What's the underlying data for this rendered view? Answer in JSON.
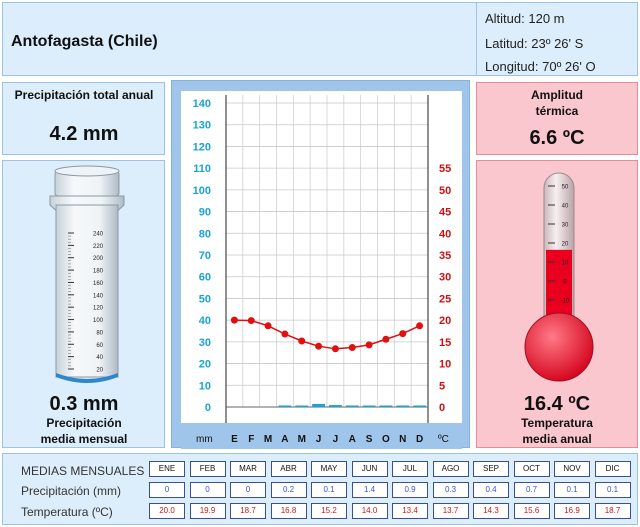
{
  "header": {
    "city": "Antofagasta (Chile)",
    "altitude": "Altitud: 120 m",
    "latitude": "Latitud: 23º 26' S",
    "longitude": "Longitud:  70º 26' O"
  },
  "precip_total": {
    "label": "Precipitación total anual",
    "value": "4.2 mm"
  },
  "precip_mean": {
    "value": "0.3 mm",
    "label_line1": "Precipitación",
    "label_line2": "media mensual"
  },
  "thermal_range": {
    "label_line1": "Amplitud",
    "label_line2": "térmica",
    "value": "6.6 ºC"
  },
  "temp_mean": {
    "value": "16.4 ºC",
    "label_line1": "Temperatura",
    "label_line2": "media anual"
  },
  "gauge": {
    "ticks": [
      "240",
      "220",
      "200",
      "180",
      "160",
      "140",
      "120",
      "100",
      "80",
      "60",
      "40",
      "20"
    ],
    "level_mm": 0.3
  },
  "thermometer": {
    "ticks": [
      "50",
      "40",
      "30",
      "20",
      "10",
      "0",
      "-10"
    ],
    "level_c": 16.4
  },
  "chart_data": {
    "type": "line",
    "categories": [
      "E",
      "F",
      "M",
      "A",
      "M",
      "J",
      "J",
      "A",
      "S",
      "O",
      "N",
      "D"
    ],
    "precipitation_mm": [
      0,
      0,
      0,
      0.2,
      0.1,
      1.4,
      0.9,
      0.3,
      0.4,
      0.7,
      0.1,
      0.1
    ],
    "temperature_c": [
      20.0,
      19.9,
      18.7,
      16.8,
      15.2,
      14.0,
      13.4,
      13.7,
      14.3,
      15.6,
      16.9,
      18.7
    ],
    "xlabel_left": "mm",
    "xlabel_right": "ºC",
    "ylim_left": [
      0,
      140
    ],
    "ylim_right": [
      0,
      55
    ],
    "yticks_left": [
      "0",
      "10",
      "20",
      "30",
      "40",
      "50",
      "60",
      "70",
      "80",
      "90",
      "100",
      "110",
      "120",
      "130",
      "140"
    ],
    "yticks_right": [
      "0",
      "5",
      "10",
      "15",
      "20",
      "25",
      "30",
      "35",
      "40",
      "45",
      "50",
      "55"
    ],
    "precip_color": "#1aa3d6",
    "temp_color": "#e01010",
    "grid": true
  },
  "table": {
    "title": "MEDIAS MENSUALES",
    "precip_label": "Precipitación (mm)",
    "temp_label": "Temperatura (ºC)",
    "months": [
      "ENE",
      "FEB",
      "MAR",
      "ABR",
      "MAY",
      "JUN",
      "JUL",
      "AGO",
      "SEP",
      "OCT",
      "NOV",
      "DIC"
    ],
    "precip": [
      "0",
      "0",
      "0",
      "0.2",
      "0.1",
      "1.4",
      "0.9",
      "0.3",
      "0.4",
      "0.7",
      "0.1",
      "0.1"
    ],
    "temp": [
      "20.0",
      "19.9",
      "18.7",
      "16.8",
      "15.2",
      "14.0",
      "13.4",
      "13.7",
      "14.3",
      "15.6",
      "16.9",
      "18.7"
    ]
  }
}
